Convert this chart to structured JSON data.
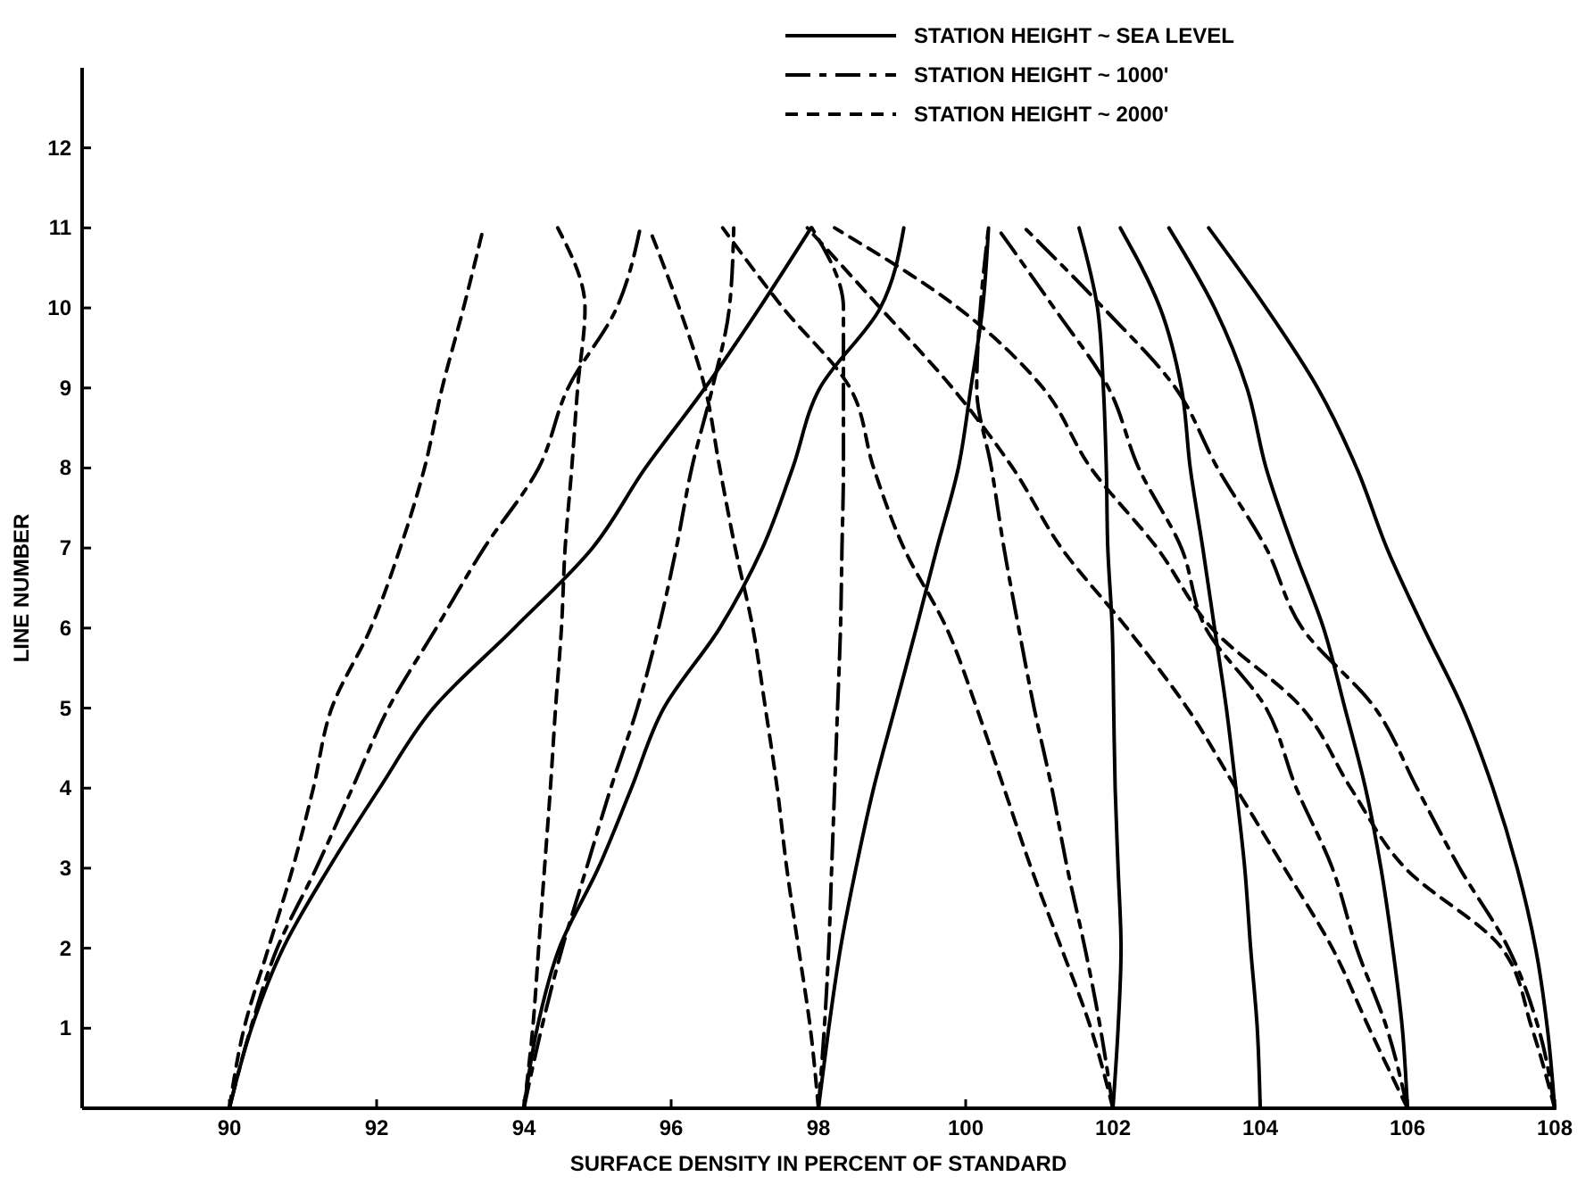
{
  "chart_data": {
    "type": "line",
    "xlabel": "SURFACE DENSITY IN PERCENT OF STANDARD",
    "ylabel": "LINE NUMBER",
    "xlim": [
      88,
      108
    ],
    "ylim": [
      0,
      13
    ],
    "xticks": [
      90,
      92,
      94,
      96,
      98,
      100,
      102,
      104,
      106,
      108
    ],
    "yticks": [
      {
        "value": 0,
        "label": null
      },
      1,
      2,
      3,
      4,
      5,
      6,
      7,
      8,
      9,
      10,
      11,
      12
    ],
    "grid": false,
    "legend": "top right",
    "series": [
      {
        "name": "STATION  HEIGHT ~ SEA LEVEL",
        "color": "#000000",
        "line_style": "solid",
        "x": [
          90,
          90.3,
          90.73,
          91.35,
          92.04,
          92.77,
          93.87,
          94.93,
          95.65,
          96.46,
          97.2,
          97.9
        ],
        "values": [
          0,
          1,
          2,
          3,
          4,
          5,
          6,
          7,
          8,
          9,
          10,
          11
        ]
      },
      {
        "color": "#000000",
        "line_style": "solid",
        "x": [
          94,
          94.18,
          94.48,
          95.01,
          95.46,
          95.9,
          96.66,
          97.24,
          97.65,
          98.02,
          98.84,
          99.16
        ],
        "values": [
          0,
          1,
          2,
          3,
          4,
          5,
          6,
          7,
          8,
          9,
          10,
          11
        ]
      },
      {
        "color": "#000000",
        "line_style": "solid",
        "x": [
          98,
          98.14,
          98.3,
          98.51,
          98.75,
          99.04,
          99.33,
          99.61,
          99.9,
          100.07,
          100.23,
          100.31
        ],
        "values": [
          0,
          1,
          2,
          3,
          4,
          5,
          6,
          7,
          8,
          9,
          10,
          11
        ]
      },
      {
        "color": "#000000",
        "line_style": "solid",
        "x": [
          102,
          102.07,
          102.11,
          102.07,
          102.03,
          102.01,
          101.99,
          101.93,
          101.91,
          101.87,
          101.79,
          101.54
        ],
        "values": [
          0,
          1,
          2,
          3,
          4,
          5,
          6,
          7,
          8,
          9,
          10,
          11
        ]
      },
      {
        "color": "#000000",
        "line_style": "solid",
        "x": [
          104,
          103.96,
          103.87,
          103.79,
          103.67,
          103.54,
          103.38,
          103.22,
          103.05,
          102.93,
          102.64,
          102.1
        ],
        "values": [
          0,
          1,
          2,
          3,
          4,
          5,
          6,
          7,
          8,
          9,
          10,
          11
        ]
      },
      {
        "color": "#000000",
        "line_style": "solid",
        "x": [
          106,
          105.93,
          105.8,
          105.64,
          105.43,
          105.15,
          104.86,
          104.45,
          104.08,
          103.82,
          103.38,
          102.76
        ],
        "values": [
          0,
          1,
          2,
          3,
          4,
          5,
          6,
          7,
          8,
          9,
          10,
          11
        ]
      },
      {
        "color": "#000000",
        "line_style": "solid",
        "x": [
          108,
          107.9,
          107.74,
          107.49,
          107.16,
          106.75,
          106.22,
          105.72,
          105.31,
          104.78,
          104.08,
          103.3
        ],
        "values": [
          0,
          1,
          2,
          3,
          4,
          5,
          6,
          7,
          8,
          9,
          10,
          11
        ]
      },
      {
        "name": "STATION HEIGHT ~ 1000'",
        "color": "#000000",
        "line_style": "dashdot",
        "x": [
          90,
          90.29,
          90.65,
          91.18,
          91.67,
          92.16,
          92.81,
          93.46,
          94.2,
          94.6,
          95.26,
          95.58
        ],
        "values": [
          0,
          1,
          2,
          3,
          4,
          5,
          6,
          7,
          8,
          9,
          10,
          11
        ]
      },
      {
        "color": "#000000",
        "line_style": "dashdot",
        "x": [
          94,
          94.24,
          94.52,
          94.85,
          95.18,
          95.54,
          95.83,
          96.07,
          96.28,
          96.56,
          96.79,
          96.85
        ],
        "values": [
          0,
          1,
          2,
          3,
          4,
          5,
          6,
          7,
          8,
          9,
          10,
          11
        ]
      },
      {
        "color": "#000000",
        "line_style": "dashdot",
        "x": [
          98,
          98.08,
          98.14,
          98.18,
          98.22,
          98.26,
          98.3,
          98.32,
          98.34,
          98.34,
          98.34,
          97.91
        ],
        "values": [
          0,
          1,
          2,
          3,
          4,
          5,
          6,
          7,
          8,
          9,
          10,
          11
        ]
      },
      {
        "color": "#000000",
        "line_style": "dashdot",
        "x": [
          102,
          101.83,
          101.62,
          101.38,
          101.17,
          100.93,
          100.72,
          100.52,
          100.35,
          100.15,
          100.2,
          100.31
        ],
        "values": [
          0,
          1,
          2,
          3,
          4,
          5,
          6,
          7,
          8,
          9,
          10,
          11
        ]
      },
      {
        "color": "#000000",
        "line_style": "dashdot",
        "x": [
          106,
          105.72,
          105.31,
          104.98,
          104.49,
          104.08,
          103.26,
          102.93,
          102.35,
          101.94,
          101.2,
          100.43
        ],
        "values": [
          0,
          1,
          2,
          3,
          4,
          5,
          6,
          7,
          8,
          9,
          10,
          11
        ]
      },
      {
        "color": "#000000",
        "line_style": "dashdot",
        "x": [
          108,
          107.78,
          107.37,
          106.71,
          106.13,
          105.56,
          104.57,
          104.08,
          103.42,
          102.85,
          101.87,
          100.8
        ],
        "values": [
          0,
          1,
          2,
          3,
          4,
          5,
          6,
          7,
          8,
          9,
          10,
          11
        ]
      },
      {
        "name": "STATION HEIGHT ~ 2000'",
        "color": "#000000",
        "line_style": "dashed",
        "x": [
          90,
          90.2,
          90.53,
          90.86,
          91.14,
          91.39,
          91.92,
          92.32,
          92.65,
          92.89,
          93.18,
          93.45
        ],
        "values": [
          0,
          1,
          2,
          3,
          4,
          5,
          6,
          7,
          8,
          9,
          10,
          11
        ]
      },
      {
        "color": "#000000",
        "line_style": "dashed",
        "x": [
          94,
          94.12,
          94.2,
          94.28,
          94.36,
          94.43,
          94.51,
          94.56,
          94.65,
          94.73,
          94.83,
          94.46
        ],
        "values": [
          0,
          1,
          2,
          3,
          4,
          5,
          6,
          7,
          8,
          9,
          10,
          11
        ]
      },
      {
        "color": "#000000",
        "line_style": "dashed",
        "x": [
          98,
          97.89,
          97.73,
          97.57,
          97.44,
          97.28,
          97.11,
          96.87,
          96.66,
          96.46,
          96.11,
          95.7
        ],
        "values": [
          0,
          1,
          2,
          3,
          4,
          5,
          6,
          7,
          8,
          9,
          10,
          11
        ]
      },
      {
        "color": "#000000",
        "line_style": "dashed",
        "x": [
          102,
          101.7,
          101.3,
          100.89,
          100.52,
          100.15,
          99.74,
          99.16,
          98.75,
          98.43,
          97.52,
          96.7
        ],
        "values": [
          0,
          1,
          2,
          3,
          4,
          5,
          6,
          7,
          8,
          9,
          10,
          11
        ]
      },
      {
        "color": "#000000",
        "line_style": "dashed",
        "x": [
          106,
          105.48,
          104.98,
          104.33,
          103.67,
          103.01,
          102.19,
          101.3,
          100.64,
          99.82,
          98.84,
          97.85
        ],
        "values": [
          0,
          1,
          2,
          3,
          4,
          5,
          6,
          7,
          8,
          9,
          10,
          11
        ]
      },
      {
        "color": "#000000",
        "line_style": "dashed",
        "x": [
          108,
          107.69,
          107.28,
          105.97,
          105.23,
          104.57,
          103.34,
          102.6,
          101.7,
          101.05,
          99.9,
          98.22
        ],
        "values": [
          0,
          1,
          2,
          3,
          4,
          5,
          6,
          7,
          8,
          9,
          10,
          11
        ]
      }
    ]
  }
}
